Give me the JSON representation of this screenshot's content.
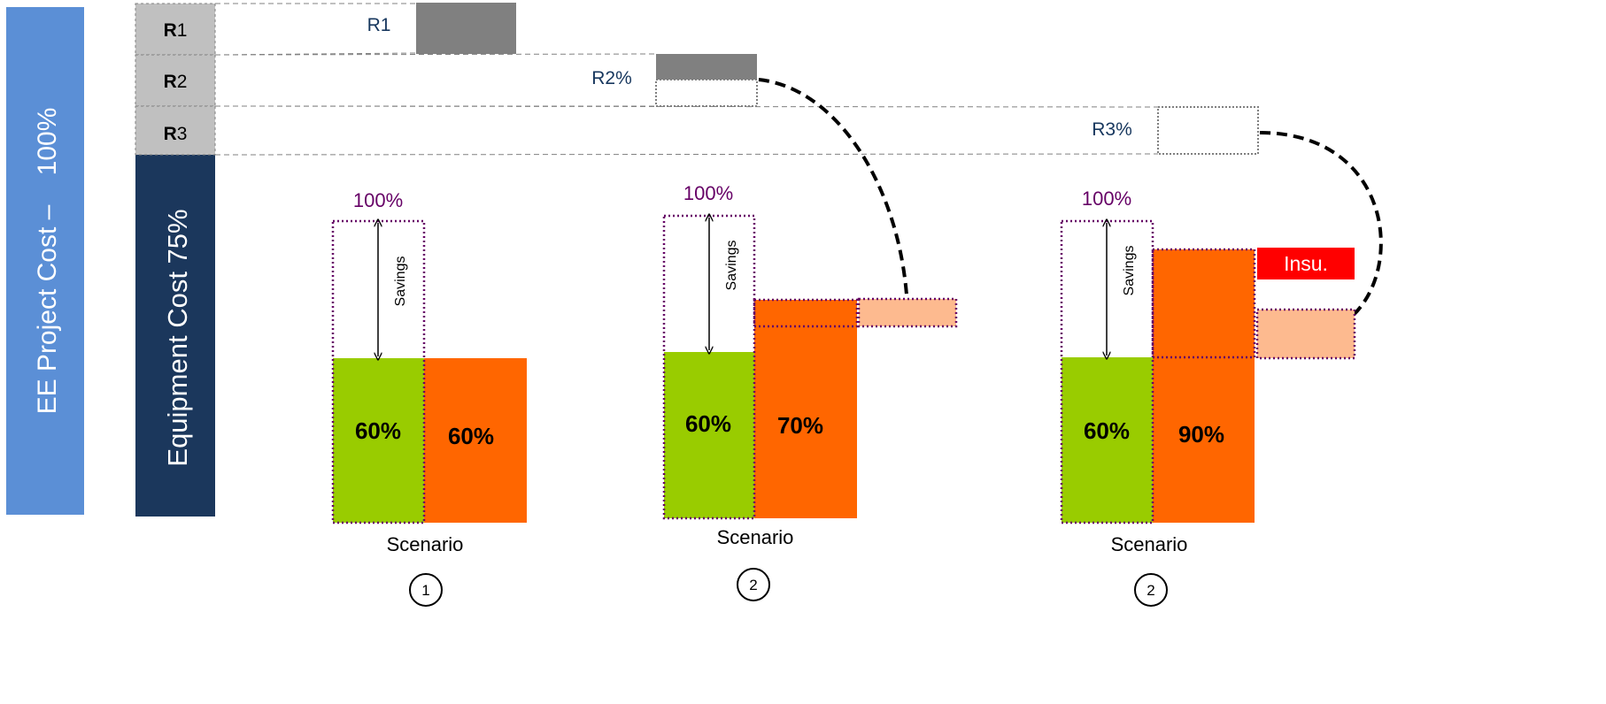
{
  "side_labels": {
    "project_cost": "EE Project Cost –    100%",
    "equipment_cost": "Equipment Cost 75%"
  },
  "risk_rows": [
    {
      "bold": "R",
      "num": "1"
    },
    {
      "bold": "R",
      "num": "2"
    },
    {
      "bold": "R",
      "num": "3"
    }
  ],
  "risk_markers": {
    "r1": "R1",
    "r2": "R2%",
    "r3": "R3%"
  },
  "scenarios": [
    {
      "top_label": "100%",
      "savings": "Savings",
      "green": "60%",
      "orange": "60%",
      "caption": "Scenario",
      "number": "1"
    },
    {
      "top_label": "100%",
      "savings": "Savings",
      "green": "60%",
      "orange": "70%",
      "caption": "Scenario",
      "number": "2"
    },
    {
      "top_label": "100%",
      "savings": "Savings",
      "green": "60%",
      "orange": "90%",
      "caption": "Scenario",
      "number": "2",
      "insurance": "Insu."
    }
  ],
  "colors": {
    "light_blue": "#5b8fd6",
    "dark_navy": "#1b375c",
    "gray_row": "#c0c0c0",
    "dark_gray": "#808080",
    "green": "#99cc00",
    "orange": "#ff6600",
    "peach": "#fdba8f",
    "red": "#ff0000",
    "purple": "#660066",
    "risk_text": "#17375e"
  }
}
